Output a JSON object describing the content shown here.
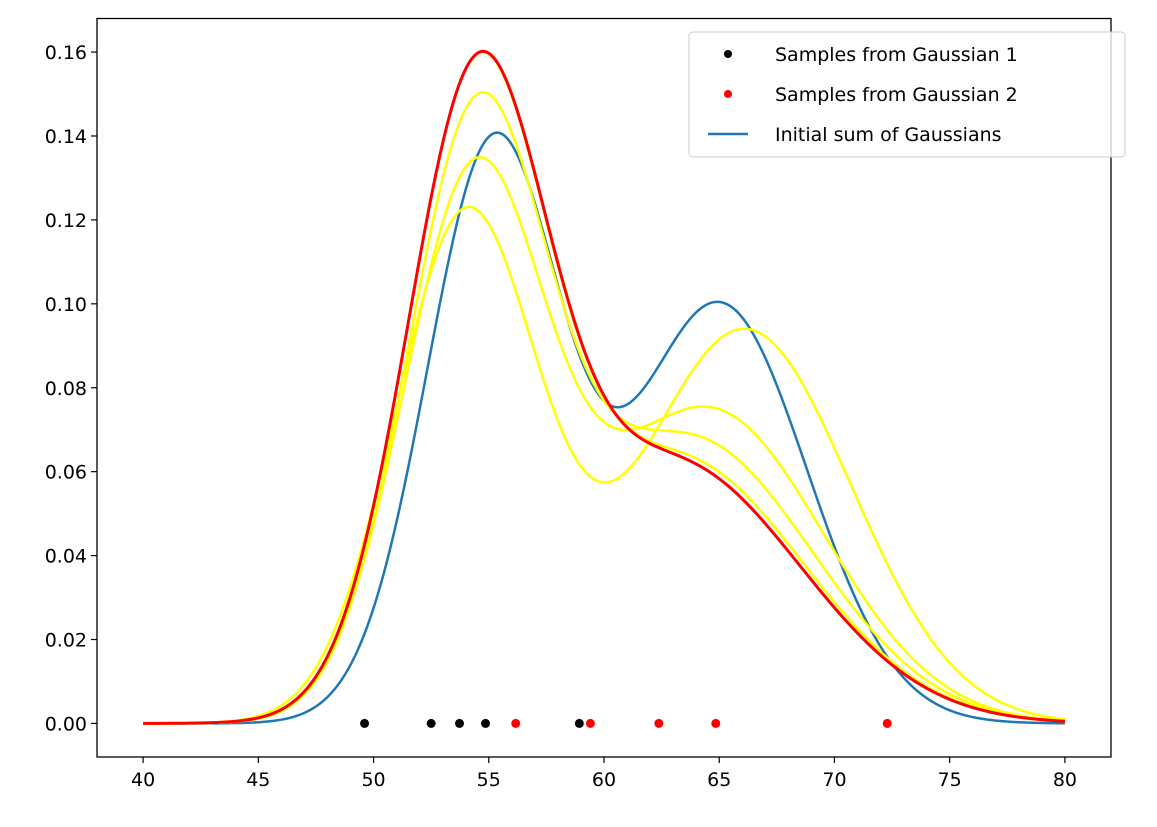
{
  "chart_data": {
    "type": "line",
    "title": "",
    "xlabel": "",
    "ylabel": "",
    "xlim": [
      38,
      82
    ],
    "ylim": [
      -0.008,
      0.168
    ],
    "xticks": [
      40,
      45,
      50,
      55,
      60,
      65,
      70,
      75,
      80
    ],
    "yticks": [
      0.0,
      0.02,
      0.04,
      0.06,
      0.08,
      0.1,
      0.12,
      0.14,
      0.16
    ],
    "ytick_labels": [
      "0.00",
      "0.02",
      "0.04",
      "0.06",
      "0.08",
      "0.10",
      "0.12",
      "0.14",
      "0.16"
    ],
    "grid": false,
    "legend_placement": "top-right",
    "samples": [
      {
        "name": "Samples from Gaussian 1",
        "color": "#000000",
        "x": [
          49.61,
          52.5,
          53.73,
          54.86,
          58.93
        ],
        "y": [
          0,
          0,
          0,
          0,
          0
        ]
      },
      {
        "name": "Samples from Gaussian 2",
        "color": "#ff0000",
        "x": [
          56.17,
          59.41,
          62.38,
          64.85,
          72.29
        ],
        "y": [
          0,
          0,
          0,
          0,
          0
        ]
      }
    ],
    "curve_x_range": [
      40,
      80
    ],
    "curves": [
      {
        "name": "Initial sum of Gaussians",
        "color": "#1f77b4",
        "components": [
          {
            "amp": 0.137,
            "mean": 55.2,
            "sd": 2.9
          },
          {
            "amp": 0.1,
            "mean": 65.0,
            "sd": 3.8
          }
        ]
      },
      {
        "color": "#ffff00",
        "components": [
          {
            "amp": 0.12,
            "mean": 54.0,
            "sd": 3.1
          },
          {
            "amp": 0.094,
            "mean": 66.1,
            "sd": 4.6
          }
        ]
      },
      {
        "color": "#ffff00",
        "components": [
          {
            "amp": 0.125,
            "mean": 54.3,
            "sd": 3.05
          },
          {
            "amp": 0.075,
            "mean": 64.5,
            "sd": 5.0
          }
        ]
      },
      {
        "color": "#ffff00",
        "components": [
          {
            "amp": 0.135,
            "mean": 54.4,
            "sd": 3.0
          },
          {
            "amp": 0.068,
            "mean": 63.7,
            "sd": 5.3
          }
        ]
      },
      {
        "color": "#ffff00",
        "components": [
          {
            "amp": 0.142,
            "mean": 54.4,
            "sd": 3.0
          },
          {
            "amp": 0.063,
            "mean": 63.2,
            "sd": 5.45
          }
        ]
      },
      {
        "color": "#ff0000",
        "components": [
          {
            "amp": 0.141,
            "mean": 54.4,
            "sd": 3.0
          },
          {
            "amp": 0.062,
            "mean": 63.0,
            "sd": 5.5
          }
        ]
      }
    ],
    "legend": [
      {
        "label": "Samples from Gaussian 1",
        "marker": "dot",
        "color": "#000000"
      },
      {
        "label": "Samples from Gaussian 2",
        "marker": "dot",
        "color": "#ff0000"
      },
      {
        "label": "Initial sum of Gaussians",
        "marker": "line",
        "color": "#1f77b4"
      }
    ]
  }
}
